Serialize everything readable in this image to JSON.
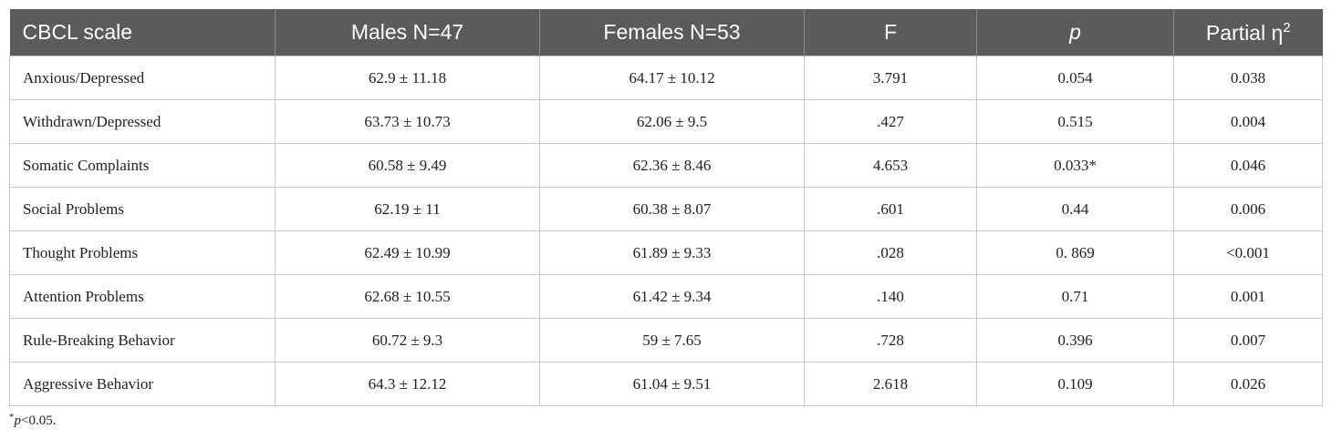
{
  "table": {
    "headers": {
      "scale": "CBCL scale",
      "males": "Males N=47",
      "females": "Females N=53",
      "f": "F",
      "p": "p",
      "eta_label": "Partial η",
      "eta_sup": "2"
    },
    "rows": [
      {
        "scale": "Anxious/Depressed",
        "males": "62.9 ± 11.18",
        "females": "64.17 ± 10.12",
        "f": "3.791",
        "p": "0.054",
        "eta": "0.038"
      },
      {
        "scale": "Withdrawn/Depressed",
        "males": "63.73 ± 10.73",
        "females": "62.06 ± 9.5",
        "f": ".427",
        "p": "0.515",
        "eta": "0.004"
      },
      {
        "scale": "Somatic Complaints",
        "males": "60.58 ± 9.49",
        "females": "62.36 ± 8.46",
        "f": "4.653",
        "p": "0.033*",
        "eta": "0.046"
      },
      {
        "scale": "Social Problems",
        "males": "62.19 ± 11",
        "females": "60.38 ± 8.07",
        "f": ".601",
        "p": "0.44",
        "eta": "0.006"
      },
      {
        "scale": "Thought Problems",
        "males": "62.49 ± 10.99",
        "females": "61.89 ± 9.33",
        "f": ".028",
        "p": "0. 869",
        "eta": "<0.001"
      },
      {
        "scale": "Attention Problems",
        "males": "62.68 ± 10.55",
        "females": "61.42 ± 9.34",
        "f": ".140",
        "p": "0.71",
        "eta": "0.001"
      },
      {
        "scale": "Rule-Breaking Behavior",
        "males": "60.72 ± 9.3",
        "females": "59 ± 7.65",
        "f": ".728",
        "p": "0.396",
        "eta": "0.007"
      },
      {
        "scale": "Aggressive Behavior",
        "males": "64.3 ± 12.12",
        "females": "61.04 ± 9.51",
        "f": "2.618",
        "p": "0.109",
        "eta": "0.026"
      }
    ]
  },
  "footnote": {
    "star": "*",
    "p": "p",
    "rest": "<0.05."
  },
  "colors": {
    "header_bg": "#5a5b5c",
    "header_text": "#ffffff",
    "grid": "#c9c9c9"
  }
}
